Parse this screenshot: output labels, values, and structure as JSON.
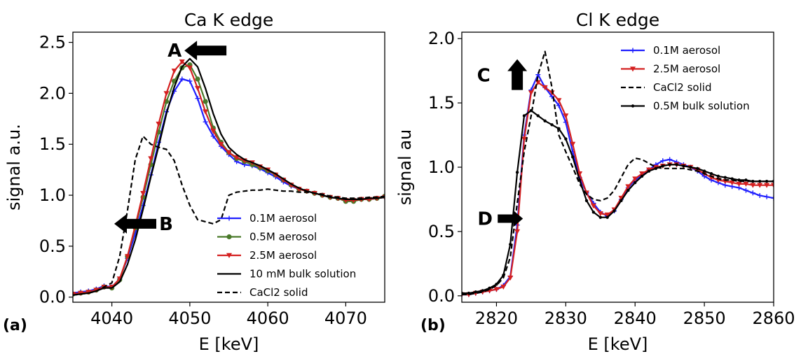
{
  "chart_data": [
    {
      "type": "line",
      "panel_label": "(a)",
      "title": "Ca K edge",
      "xlabel": "E [keV]",
      "ylabel": "signal a.u.",
      "xlim": [
        4035,
        4075
      ],
      "ylim": [
        -0.05,
        2.6
      ],
      "xticks": [
        4040,
        4050,
        4060,
        4070
      ],
      "yticks": [
        0.0,
        0.5,
        1.0,
        1.5,
        2.0,
        2.5
      ],
      "xtick_labels": [
        "4040",
        "4050",
        "4060",
        "4070"
      ],
      "ytick_labels": [
        "0.0",
        "0.5",
        "1.0",
        "1.5",
        "2.0",
        "2.5"
      ],
      "legend_position": "lower-right",
      "series": [
        {
          "name": "0.1M aerosol",
          "color": "#1f1fff",
          "marker": "plus",
          "dash": "solid",
          "x": [
            4035,
            4036,
            4037,
            4038,
            4039,
            4040,
            4041,
            4042,
            4043,
            4044,
            4045,
            4046,
            4047,
            4048,
            4049,
            4050,
            4051,
            4052,
            4053,
            4054,
            4055,
            4056,
            4057,
            4058,
            4059,
            4060,
            4061,
            4062,
            4063,
            4064,
            4065,
            4066,
            4067,
            4068,
            4069,
            4070,
            4071,
            4072,
            4073,
            4074,
            4075
          ],
          "y": [
            0.04,
            0.05,
            0.06,
            0.08,
            0.11,
            0.1,
            0.18,
            0.38,
            0.62,
            0.9,
            1.2,
            1.52,
            1.82,
            2.02,
            2.14,
            2.12,
            1.95,
            1.72,
            1.58,
            1.48,
            1.4,
            1.33,
            1.3,
            1.29,
            1.26,
            1.22,
            1.18,
            1.13,
            1.09,
            1.06,
            1.04,
            1.02,
            1.0,
            0.98,
            0.97,
            0.95,
            0.95,
            0.96,
            0.96,
            0.97,
            0.98
          ]
        },
        {
          "name": "0.5M aerosol",
          "color": "#4a7a2a",
          "marker": "circle",
          "dash": "solid",
          "x": [
            4035,
            4036,
            4037,
            4038,
            4039,
            4040,
            4041,
            4042,
            4043,
            4044,
            4045,
            4046,
            4047,
            4048,
            4049,
            4050,
            4051,
            4052,
            4053,
            4054,
            4055,
            4056,
            4057,
            4058,
            4059,
            4060,
            4061,
            4062,
            4063,
            4064,
            4065,
            4066,
            4067,
            4068,
            4069,
            4070,
            4071,
            4072,
            4073,
            4074,
            4075
          ],
          "y": [
            0.03,
            0.04,
            0.05,
            0.07,
            0.1,
            0.09,
            0.17,
            0.4,
            0.68,
            0.98,
            1.3,
            1.62,
            1.92,
            2.12,
            2.25,
            2.28,
            2.14,
            1.92,
            1.66,
            1.52,
            1.42,
            1.36,
            1.33,
            1.3,
            1.27,
            1.24,
            1.2,
            1.15,
            1.1,
            1.06,
            1.04,
            1.02,
            1.0,
            0.98,
            0.97,
            0.94,
            0.94,
            0.96,
            0.96,
            0.97,
            0.99
          ]
        },
        {
          "name": "2.5M aerosol",
          "color": "#d42020",
          "marker": "triangle-down",
          "dash": "solid",
          "x": [
            4035,
            4036,
            4037,
            4038,
            4039,
            4040,
            4041,
            4042,
            4043,
            4044,
            4045,
            4046,
            4047,
            4048,
            4049,
            4050,
            4051,
            4052,
            4053,
            4054,
            4055,
            4056,
            4057,
            4058,
            4059,
            4060,
            4061,
            4062,
            4063,
            4064,
            4065,
            4066,
            4067,
            4068,
            4069,
            4070,
            4071,
            4072,
            4073,
            4074,
            4075
          ],
          "y": [
            0.03,
            0.04,
            0.05,
            0.07,
            0.1,
            0.1,
            0.18,
            0.4,
            0.7,
            1.02,
            1.36,
            1.7,
            2.0,
            2.22,
            2.31,
            2.25,
            2.05,
            1.82,
            1.63,
            1.5,
            1.42,
            1.37,
            1.34,
            1.32,
            1.28,
            1.25,
            1.2,
            1.15,
            1.1,
            1.06,
            1.04,
            1.02,
            1.0,
            0.98,
            0.97,
            0.95,
            0.95,
            0.96,
            0.96,
            0.97,
            0.98
          ]
        },
        {
          "name": "10 mM bulk solution",
          "color": "#000000",
          "marker": "none",
          "dash": "solid",
          "x": [
            4035,
            4036,
            4037,
            4038,
            4039,
            4040,
            4041,
            4042,
            4043,
            4044,
            4045,
            4046,
            4047,
            4048,
            4049,
            4050,
            4051,
            4052,
            4053,
            4054,
            4055,
            4056,
            4057,
            4058,
            4059,
            4060,
            4061,
            4062,
            4063,
            4064,
            4065,
            4066,
            4067,
            4068,
            4069,
            4070,
            4071,
            4072,
            4073,
            4074,
            4075
          ],
          "y": [
            0.02,
            0.03,
            0.04,
            0.06,
            0.09,
            0.09,
            0.15,
            0.32,
            0.56,
            0.86,
            1.18,
            1.48,
            1.8,
            2.06,
            2.26,
            2.34,
            2.26,
            2.05,
            1.8,
            1.6,
            1.47,
            1.4,
            1.35,
            1.32,
            1.29,
            1.25,
            1.21,
            1.16,
            1.11,
            1.07,
            1.04,
            1.02,
            1.0,
            0.98,
            0.97,
            0.96,
            0.96,
            0.96,
            0.97,
            0.97,
            0.98
          ]
        },
        {
          "name": "CaCl2 solid",
          "color": "#000000",
          "marker": "none",
          "dash": "dashed",
          "x": [
            4035,
            4036,
            4037,
            4038,
            4039,
            4040,
            4041,
            4042,
            4043,
            4044,
            4045,
            4046,
            4047,
            4048,
            4049,
            4050,
            4051,
            4052,
            4053,
            4054,
            4055,
            4056,
            4057,
            4058,
            4059,
            4060,
            4061,
            4062,
            4063,
            4064,
            4065,
            4066,
            4067,
            4068,
            4069,
            4070,
            4071,
            4072,
            4073,
            4074,
            4075
          ],
          "y": [
            0.02,
            0.03,
            0.04,
            0.06,
            0.1,
            0.14,
            0.4,
            0.85,
            1.35,
            1.58,
            1.5,
            1.47,
            1.45,
            1.34,
            1.1,
            0.9,
            0.76,
            0.74,
            0.72,
            0.76,
            1.0,
            1.03,
            1.04,
            1.05,
            1.05,
            1.06,
            1.05,
            1.04,
            1.04,
            1.03,
            1.03,
            1.02,
            1.01,
            0.99,
            0.98,
            0.97,
            0.97,
            0.97,
            0.98,
            0.98,
            0.99
          ]
        }
      ],
      "annotations": [
        {
          "label": "A",
          "arrow": "left",
          "x": 4052,
          "y": 2.42
        },
        {
          "label": "B",
          "arrow": "left",
          "x": 4043,
          "y": 0.72
        }
      ]
    },
    {
      "type": "line",
      "panel_label": "(b)",
      "title": "Cl K edge",
      "xlabel": "E [keV]",
      "ylabel": "signal au",
      "xlim": [
        2815,
        2860
      ],
      "ylim": [
        -0.05,
        2.05
      ],
      "xticks": [
        2820,
        2830,
        2840,
        2850,
        2860
      ],
      "yticks": [
        0.0,
        0.5,
        1.0,
        1.5,
        2.0
      ],
      "xtick_labels": [
        "2820",
        "2830",
        "2840",
        "2850",
        "2860"
      ],
      "ytick_labels": [
        "0.0",
        "0.5",
        "1.0",
        "1.5",
        "2.0"
      ],
      "legend_position": "upper-right",
      "series": [
        {
          "name": "0.1M aerosol",
          "color": "#1f1fff",
          "marker": "plus",
          "dash": "solid",
          "x": [
            2815,
            2816,
            2817,
            2818,
            2819,
            2820,
            2821,
            2822,
            2823,
            2824,
            2825,
            2826,
            2827,
            2828,
            2829,
            2830,
            2831,
            2832,
            2833,
            2834,
            2835,
            2836,
            2837,
            2838,
            2839,
            2840,
            2841,
            2842,
            2843,
            2844,
            2845,
            2846,
            2847,
            2848,
            2849,
            2850,
            2851,
            2852,
            2853,
            2854,
            2855,
            2856,
            2857,
            2858,
            2859,
            2860
          ],
          "y": [
            0.01,
            0.01,
            0.02,
            0.03,
            0.04,
            0.05,
            0.08,
            0.15,
            0.55,
            1.25,
            1.6,
            1.72,
            1.62,
            1.55,
            1.48,
            1.35,
            1.12,
            0.92,
            0.8,
            0.72,
            0.65,
            0.62,
            0.66,
            0.75,
            0.84,
            0.9,
            0.94,
            0.98,
            1.02,
            1.05,
            1.06,
            1.04,
            1.02,
            1.0,
            0.97,
            0.93,
            0.9,
            0.88,
            0.86,
            0.85,
            0.84,
            0.82,
            0.8,
            0.78,
            0.77,
            0.76
          ]
        },
        {
          "name": "2.5M aerosol",
          "color": "#d42020",
          "marker": "triangle-down",
          "dash": "solid",
          "x": [
            2815,
            2816,
            2817,
            2818,
            2819,
            2820,
            2821,
            2822,
            2823,
            2824,
            2825,
            2826,
            2827,
            2828,
            2829,
            2830,
            2831,
            2832,
            2833,
            2834,
            2835,
            2836,
            2837,
            2838,
            2839,
            2840,
            2841,
            2842,
            2843,
            2844,
            2845,
            2846,
            2847,
            2848,
            2849,
            2850,
            2851,
            2852,
            2853,
            2854,
            2855,
            2856,
            2857,
            2858,
            2859,
            2860
          ],
          "y": [
            0.01,
            0.01,
            0.02,
            0.03,
            0.04,
            0.05,
            0.07,
            0.14,
            0.5,
            1.22,
            1.58,
            1.66,
            1.62,
            1.58,
            1.52,
            1.4,
            1.18,
            0.95,
            0.8,
            0.7,
            0.64,
            0.63,
            0.67,
            0.76,
            0.85,
            0.91,
            0.95,
            0.98,
            1.0,
            1.01,
            1.02,
            1.02,
            1.01,
            1.0,
            0.98,
            0.95,
            0.92,
            0.9,
            0.89,
            0.88,
            0.87,
            0.87,
            0.86,
            0.86,
            0.86,
            0.86
          ]
        },
        {
          "name": "CaCl2 solid",
          "color": "#000000",
          "marker": "none",
          "dash": "dashed",
          "x": [
            2815,
            2816,
            2817,
            2818,
            2819,
            2820,
            2821,
            2822,
            2823,
            2824,
            2825,
            2826,
            2827,
            2828,
            2829,
            2830,
            2831,
            2832,
            2833,
            2834,
            2835,
            2836,
            2837,
            2838,
            2839,
            2840,
            2841,
            2842,
            2843,
            2844,
            2845,
            2846,
            2847,
            2848,
            2849,
            2850,
            2851,
            2852,
            2853,
            2854,
            2855,
            2856,
            2857,
            2858,
            2859,
            2860
          ],
          "y": [
            0.01,
            0.01,
            0.02,
            0.03,
            0.05,
            0.08,
            0.14,
            0.3,
            0.72,
            1.12,
            1.4,
            1.72,
            1.9,
            1.62,
            1.25,
            1.12,
            1.0,
            0.87,
            0.79,
            0.75,
            0.74,
            0.76,
            0.82,
            0.92,
            1.02,
            1.07,
            1.06,
            1.03,
            1.0,
            0.99,
            0.99,
            0.99,
            0.99,
            0.98,
            0.97,
            0.95,
            0.93,
            0.91,
            0.9,
            0.9,
            0.89,
            0.89,
            0.89,
            0.89,
            0.89,
            0.89
          ]
        },
        {
          "name": "0.5M bulk solution",
          "color": "#000000",
          "marker": "dot",
          "dash": "solid",
          "x": [
            2815,
            2816,
            2817,
            2818,
            2819,
            2820,
            2821,
            2822,
            2823,
            2824,
            2825,
            2826,
            2827,
            2828,
            2829,
            2830,
            2831,
            2832,
            2833,
            2834,
            2835,
            2836,
            2837,
            2838,
            2839,
            2840,
            2841,
            2842,
            2843,
            2844,
            2845,
            2846,
            2847,
            2848,
            2849,
            2850,
            2851,
            2852,
            2853,
            2854,
            2855,
            2856,
            2857,
            2858,
            2859,
            2860
          ],
          "y": [
            0.02,
            0.02,
            0.03,
            0.04,
            0.06,
            0.09,
            0.16,
            0.4,
            0.96,
            1.4,
            1.44,
            1.4,
            1.36,
            1.33,
            1.3,
            1.22,
            1.08,
            0.9,
            0.74,
            0.65,
            0.61,
            0.61,
            0.66,
            0.74,
            0.82,
            0.88,
            0.93,
            0.97,
            0.99,
            1.01,
            1.02,
            1.02,
            1.01,
            1.0,
            0.99,
            0.97,
            0.95,
            0.93,
            0.92,
            0.91,
            0.9,
            0.9,
            0.89,
            0.89,
            0.89,
            0.89
          ]
        }
      ],
      "annotations": [
        {
          "label": "C",
          "arrow": "up",
          "x": 2823,
          "y": 1.72
        },
        {
          "label": "D",
          "arrow": "right",
          "x": 2822,
          "y": 0.6
        }
      ]
    }
  ]
}
